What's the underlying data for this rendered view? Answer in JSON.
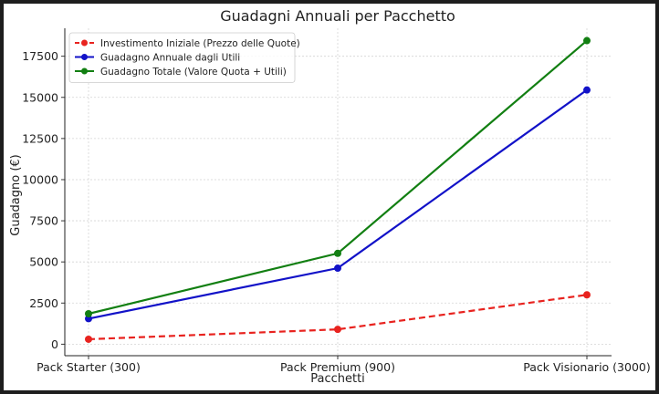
{
  "chart_data": {
    "type": "line",
    "title": "Guadagni Annuali per Pacchetto",
    "xlabel": "Pacchetti",
    "ylabel": "Guadagno (€)",
    "categories": [
      "Pack Starter (300)",
      "Pack Premium (900)",
      "Pack Visionario (3000)"
    ],
    "ylim": [
      -700,
      19200
    ],
    "yticks": [
      0,
      2500,
      5000,
      7500,
      10000,
      12500,
      15000,
      17500
    ],
    "grid": true,
    "legend_position": "top-left",
    "series": [
      {
        "name": "Investimento Iniziale (Prezzo delle Quote)",
        "color": "#e8231f",
        "style": "dashed",
        "values": [
          300,
          900,
          3000
        ]
      },
      {
        "name": "Guadagno Annuale dagli Utili",
        "color": "#1212c8",
        "style": "solid",
        "values": [
          1550,
          4620,
          15450
        ]
      },
      {
        "name": "Guadagno Totale (Valore Quota + Utili)",
        "color": "#127f12",
        "style": "solid",
        "values": [
          1850,
          5520,
          18450
        ]
      }
    ]
  }
}
